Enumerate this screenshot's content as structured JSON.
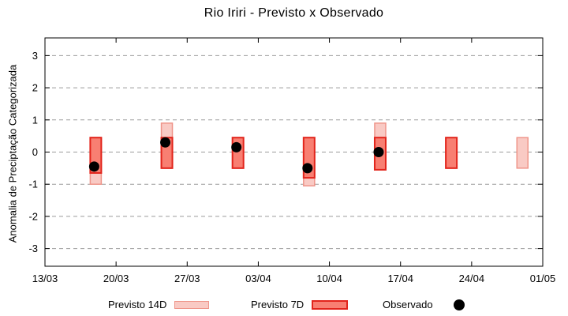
{
  "title": "Rio Iriri - Previsto x Observado",
  "chart_data": {
    "type": "bar",
    "subtype": "range-bars-with-observed-points",
    "title": "Rio Iriri - Previsto x Observado",
    "xlabel": "",
    "ylabel": "Anomalia de Preciptação Categorizada",
    "ylim": [
      -3.55,
      3.55
    ],
    "yticks": [
      3,
      2,
      1,
      0,
      -1,
      -2,
      -3
    ],
    "ytick_labels": [
      "3",
      "2",
      "1",
      "0",
      "-1",
      "-2",
      "-3"
    ],
    "x_range_days": [
      0,
      49
    ],
    "xtick_days": [
      0,
      7,
      14,
      21,
      28,
      35,
      42,
      49
    ],
    "xtick_labels": [
      "13/03",
      "20/03",
      "27/03",
      "03/04",
      "10/04",
      "17/04",
      "24/04",
      "01/05"
    ],
    "grid": true,
    "colors": {
      "axis": "#000000",
      "grid": "#9b9b9b",
      "background": "#ffffff",
      "text": "#000000"
    },
    "series": [
      {
        "name": "Previsto 14D",
        "type": "range-bar",
        "fill": "#f9cac4",
        "border": "#ef958a",
        "border_width": 1.5,
        "points": [
          {
            "day": 5,
            "date": "18/03",
            "low": -1.0,
            "high": 0.45
          },
          {
            "day": 12,
            "date": "25/03",
            "low": -0.5,
            "high": 0.9
          },
          {
            "day": 26,
            "date": "08/04",
            "low": -1.05,
            "high": 0.45
          },
          {
            "day": 33,
            "date": "15/04",
            "low": -0.55,
            "high": 0.9
          },
          {
            "day": 47,
            "date": "29/04",
            "low": -0.5,
            "high": 0.45
          }
        ]
      },
      {
        "name": "Previsto 7D",
        "type": "range-bar",
        "fill": "#f87f72",
        "border": "#e2251c",
        "border_width": 2,
        "points": [
          {
            "day": 5,
            "date": "18/03",
            "low": -0.65,
            "high": 0.45
          },
          {
            "day": 12,
            "date": "25/03",
            "low": -0.5,
            "high": 0.45
          },
          {
            "day": 19,
            "date": "01/04",
            "low": -0.5,
            "high": 0.45
          },
          {
            "day": 26,
            "date": "08/04",
            "low": -0.8,
            "high": 0.45
          },
          {
            "day": 33,
            "date": "15/04",
            "low": -0.55,
            "high": 0.45
          },
          {
            "day": 40,
            "date": "22/04",
            "low": -0.5,
            "high": 0.45
          }
        ]
      },
      {
        "name": "Observado",
        "type": "scatter",
        "color": "#000000",
        "points": [
          {
            "day": 5,
            "date": "18/03",
            "value": -0.45
          },
          {
            "day": 12,
            "date": "25/03",
            "value": 0.3
          },
          {
            "day": 19,
            "date": "01/04",
            "value": 0.15
          },
          {
            "day": 26,
            "date": "08/04",
            "value": -0.5
          },
          {
            "day": 33,
            "date": "15/04",
            "value": 0.0
          }
        ]
      }
    ],
    "legend": {
      "position": "bottom",
      "entries": [
        {
          "label": "Previsto 14D",
          "swatch": "light-pink-rect"
        },
        {
          "label": "Previsto 7D",
          "swatch": "salmon-rect"
        },
        {
          "label": "Observado",
          "swatch": "black-dot"
        }
      ]
    }
  }
}
